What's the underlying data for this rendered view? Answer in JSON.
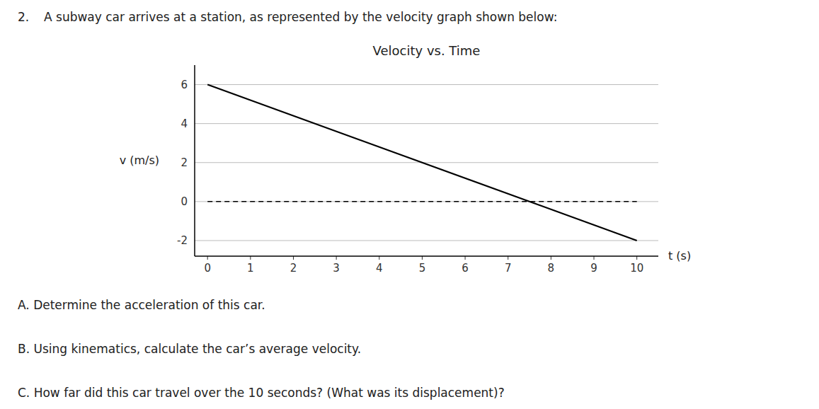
{
  "chart_data": {
    "type": "line",
    "title": "Velocity vs. Time",
    "x_label": "t (s)",
    "y_label": "v (m/s)",
    "x": [
      0,
      10
    ],
    "series": [
      {
        "color": "#000000",
        "values": [
          6,
          -2
        ],
        "line_style": "solid"
      },
      {
        "color": "#000000",
        "values": [
          0,
          0
        ],
        "line_style": "dashed"
      }
    ],
    "xlim": [
      -0.3,
      10.5
    ],
    "ylim": [
      -2.8,
      7.0
    ],
    "xticks": [
      0,
      1,
      2,
      3,
      4,
      5,
      6,
      7,
      8,
      9,
      10
    ],
    "yticks": [
      -2,
      0,
      2,
      4,
      6
    ],
    "grid": true,
    "grid_color": "#bbbbbb",
    "annotations": [
      "2.",
      "A subway car arrives at a station, as represented by the velocity graph shown below:",
      "A.  Determine the acceleration of this car.",
      "B.  Using kinematics, calculate the car’s average velocity.",
      "C.  How far did this car travel over the 10 seconds? (What was its displacement)?"
    ]
  }
}
